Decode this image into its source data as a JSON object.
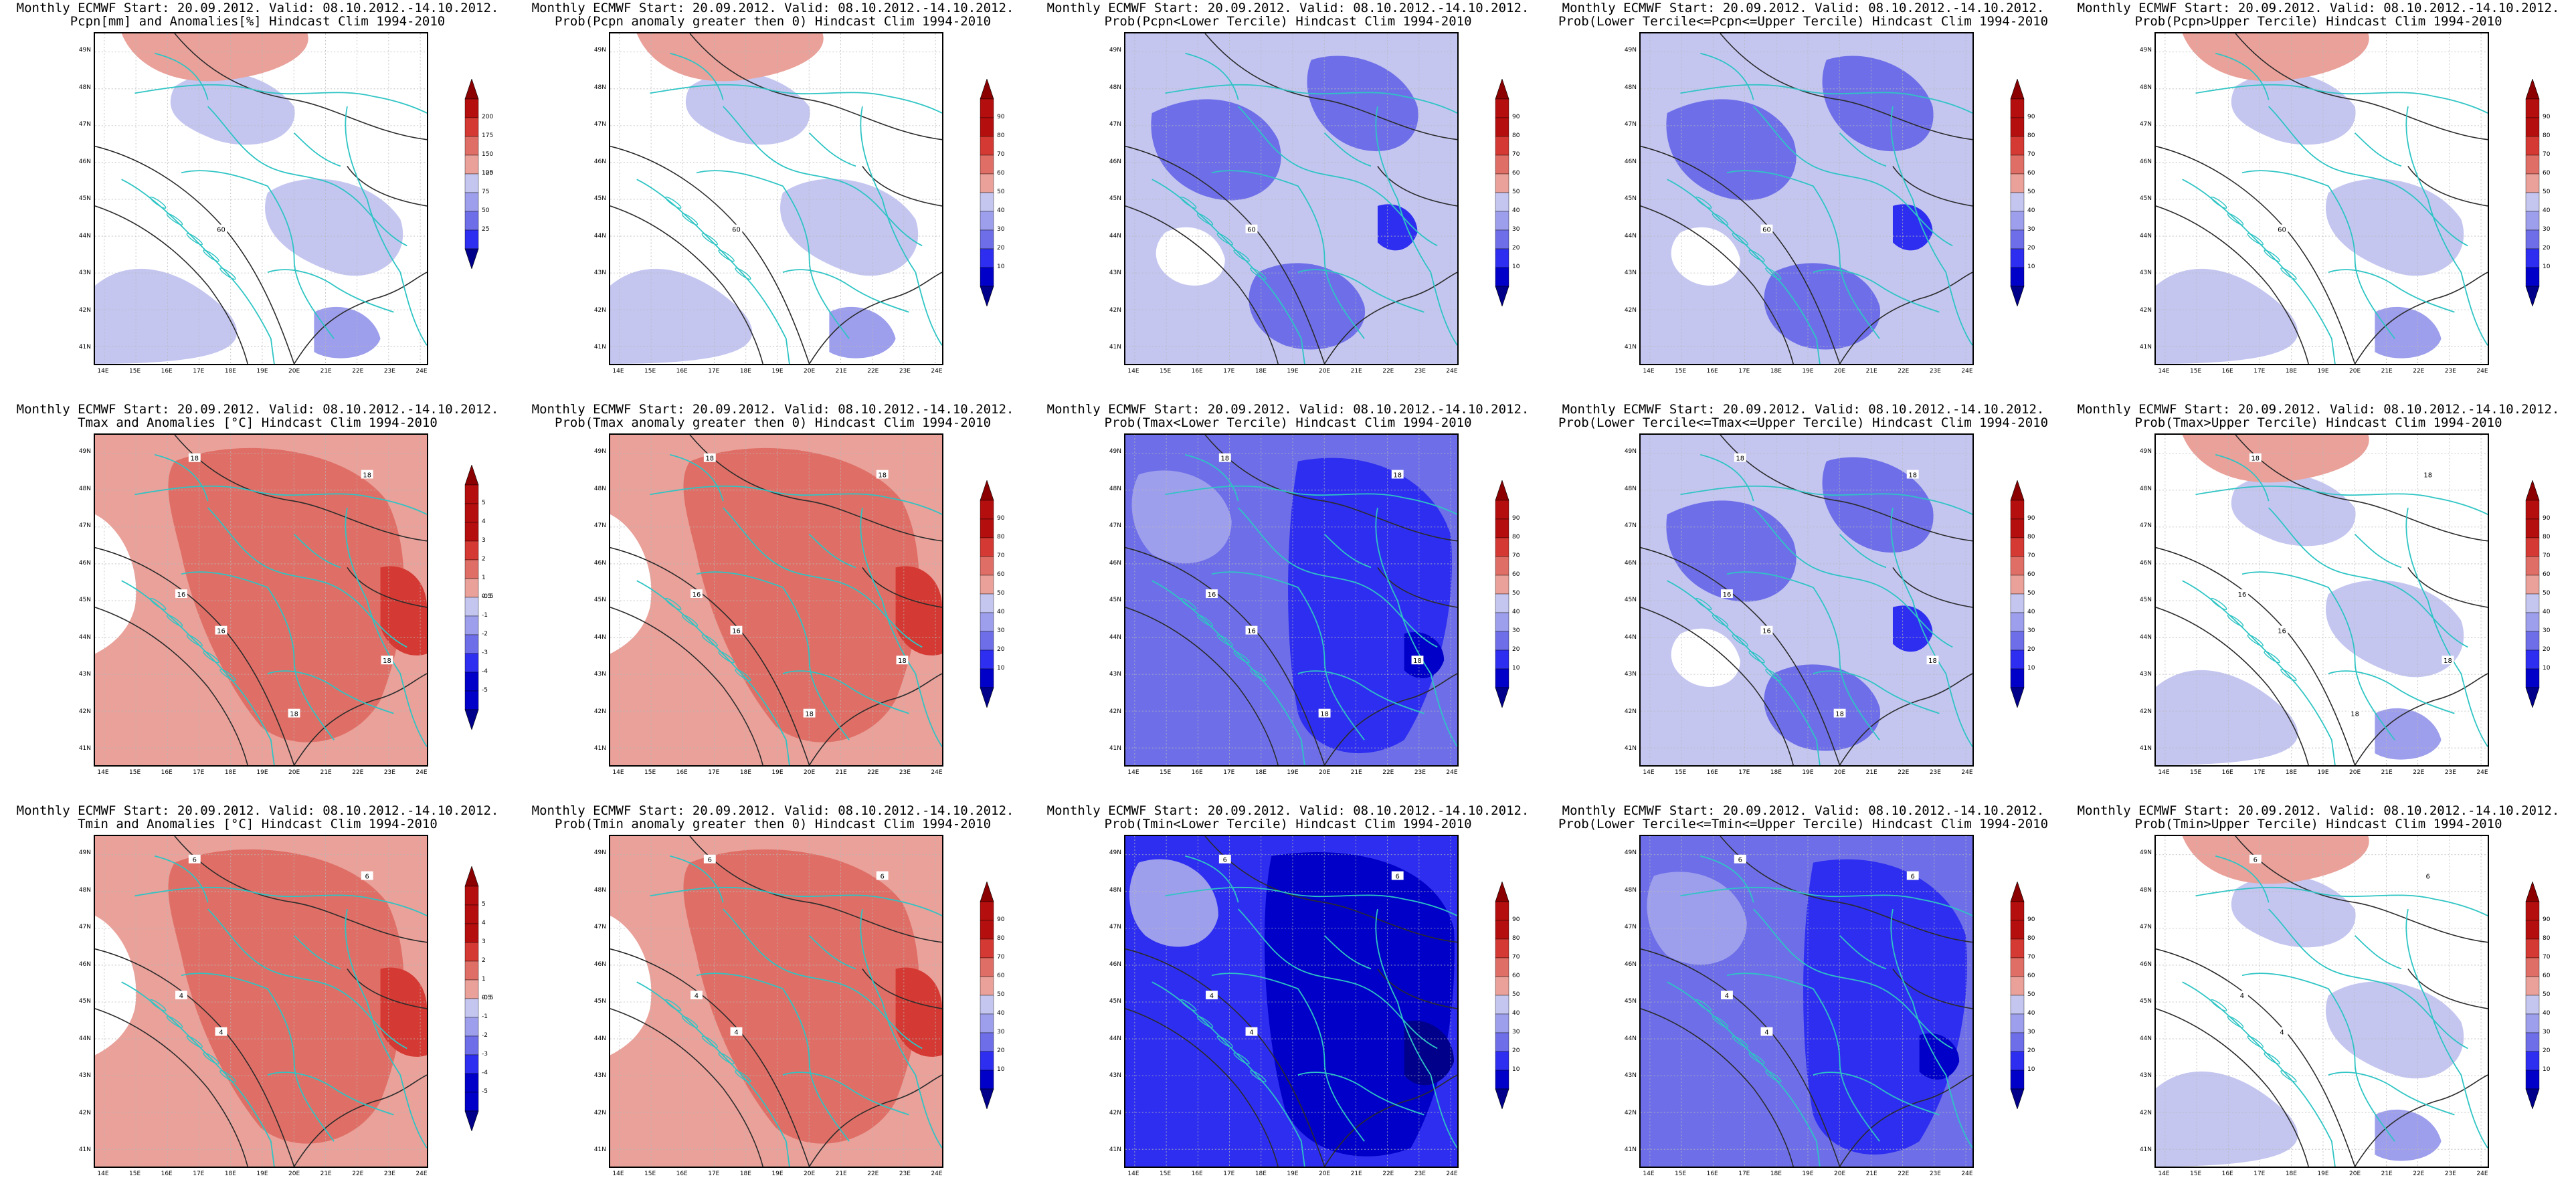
{
  "colors": {
    "red": [
      "#e9a19a",
      "#df6f66",
      "#d43a33",
      "#b50e0e",
      "#8b0000"
    ],
    "blue": [
      "#c4c6f0",
      "#9e9fec",
      "#6e6fe8",
      "#2e2ef0",
      "#0000c8",
      "#00008b"
    ],
    "border": "#2ec4c4",
    "contour": "#2b2b2b",
    "grid": "#b8b8b8"
  },
  "axes": {
    "lon_labels": [
      "14E",
      "15E",
      "16E",
      "17E",
      "18E",
      "19E",
      "20E",
      "21E",
      "22E",
      "23E",
      "24E"
    ],
    "lat_labels": [
      "49N",
      "48N",
      "47N",
      "46N",
      "45N",
      "44N",
      "43N",
      "42N",
      "41N"
    ]
  },
  "colorbars": {
    "pcpn_anom": {
      "labels": [
        "200",
        "175",
        "150",
        "125",
        "100",
        "75",
        "50",
        "25"
      ],
      "reds": 4,
      "blues": 4
    },
    "temp_anom": {
      "labels": [
        "5",
        "4",
        "3",
        "2",
        "1",
        "0.5",
        "-0.5",
        "-1",
        "-2",
        "-3",
        "-4",
        "-5"
      ],
      "reds": 6,
      "blues": 6
    },
    "prob": {
      "labels": [
        "90",
        "80",
        "70",
        "60",
        "50",
        "40",
        "30",
        "20",
        "10"
      ],
      "reds": 5,
      "blues": 5
    }
  },
  "panels": [
    {
      "id": "p11",
      "title1": "Monthly ECMWF Start: 20.09.2012. Valid: 08.10.2012.-14.10.2012.",
      "title2": "Pcpn[mm] and Anomalies[%] Hindcast Clim 1994-2010",
      "cbar": "pcpn_anom",
      "base": "white",
      "contour_labels": [
        "60"
      ]
    },
    {
      "id": "p12",
      "title1": "Monthly ECMWF Start: 20.09.2012. Valid: 08.10.2012.-14.10.2012.",
      "title2": "Prob(Pcpn anomaly greater then 0) Hindcast Clim 1994-2010",
      "cbar": "prob",
      "base": "white",
      "contour_labels": [
        "60"
      ]
    },
    {
      "id": "p13",
      "title1": "Monthly ECMWF Start: 20.09.2012. Valid: 08.10.2012.-14.10.2012.",
      "title2": "Prob(Pcpn<Lower Tercile) Hindcast Clim 1994-2010",
      "cbar": "prob",
      "base": "blue1",
      "contour_labels": [
        "60"
      ]
    },
    {
      "id": "p14",
      "title1": "Monthly ECMWF Start: 20.09.2012. Valid: 08.10.2012.-14.10.2012.",
      "title2": "Prob(Lower Tercile<=Pcpn<=Upper Tercile) Hindcast Clim 1994-2010",
      "cbar": "prob",
      "base": "blue1",
      "contour_labels": [
        "60"
      ]
    },
    {
      "id": "p15",
      "title1": "Monthly ECMWF Start: 20.09.2012. Valid: 08.10.2012.-14.10.2012.",
      "title2": "Prob(Pcpn>Upper Tercile) Hindcast Clim 1994-2010",
      "cbar": "prob",
      "base": "white",
      "contour_labels": [
        "60"
      ]
    },
    {
      "id": "p21",
      "title1": "Monthly ECMWF Start: 20.09.2012. Valid: 08.10.2012.-14.10.2012.",
      "title2": "Tmax and Anomalies [°C] Hindcast Clim 1994-2010",
      "cbar": "temp_anom",
      "base": "red1",
      "contour_labels": [
        "16",
        "18",
        "18",
        "16",
        "18",
        "18"
      ]
    },
    {
      "id": "p22",
      "title1": "Monthly ECMWF Start: 20.09.2012. Valid: 08.10.2012.-14.10.2012.",
      "title2": "Prob(Tmax anomaly greater then 0) Hindcast Clim 1994-2010",
      "cbar": "prob",
      "base": "red1",
      "contour_labels": [
        "16",
        "18",
        "18",
        "16",
        "18",
        "18"
      ]
    },
    {
      "id": "p23",
      "title1": "Monthly ECMWF Start: 20.09.2012. Valid: 08.10.2012.-14.10.2012.",
      "title2": "Prob(Tmax<Lower Tercile) Hindcast Clim 1994-2010",
      "cbar": "prob",
      "base": "blue2",
      "contour_labels": [
        "16",
        "18",
        "18",
        "16",
        "18",
        "18"
      ]
    },
    {
      "id": "p24",
      "title1": "Monthly ECMWF Start: 20.09.2012. Valid: 08.10.2012.-14.10.2012.",
      "title2": "Prob(Lower Tercile<=Tmax<=Upper Tercile) Hindcast Clim 1994-2010",
      "cbar": "prob",
      "base": "blue1",
      "contour_labels": [
        "16",
        "18",
        "18",
        "16",
        "18",
        "18"
      ]
    },
    {
      "id": "p25",
      "title1": "Monthly ECMWF Start: 20.09.2012. Valid: 08.10.2012.-14.10.2012.",
      "title2": "Prob(Tmax>Upper Tercile) Hindcast Clim 1994-2010",
      "cbar": "prob",
      "base": "white",
      "contour_labels": [
        "16",
        "18",
        "18",
        "16",
        "18",
        "18"
      ]
    },
    {
      "id": "p31",
      "title1": "Monthly ECMWF Start: 20.09.2012. Valid: 08.10.2012.-14.10.2012.",
      "title2": "Tmin and Anomalies [°C] Hindcast Clim 1994-2010",
      "cbar": "temp_anom",
      "base": "red1",
      "contour_labels": [
        "4",
        "6",
        "6",
        "4"
      ]
    },
    {
      "id": "p32",
      "title1": "Monthly ECMWF Start: 20.09.2012. Valid: 08.10.2012.-14.10.2012.",
      "title2": "Prob(Tmin anomaly greater then 0) Hindcast Clim 1994-2010",
      "cbar": "prob",
      "base": "red1",
      "contour_labels": [
        "4",
        "6",
        "6",
        "4"
      ]
    },
    {
      "id": "p33",
      "title1": "Monthly ECMWF Start: 20.09.2012. Valid: 08.10.2012.-14.10.2012.",
      "title2": "Prob(Tmin<Lower Tercile) Hindcast Clim 1994-2010",
      "cbar": "prob",
      "base": "blue3",
      "contour_labels": [
        "4",
        "6",
        "6",
        "4"
      ]
    },
    {
      "id": "p34",
      "title1": "Monthly ECMWF Start: 20.09.2012. Valid: 08.10.2012.-14.10.2012.",
      "title2": "Prob(Lower Tercile<=Tmin<=Upper Tercile) Hindcast Clim 1994-2010",
      "cbar": "prob",
      "base": "blue2",
      "contour_labels": [
        "4",
        "6",
        "6",
        "4"
      ]
    },
    {
      "id": "p35",
      "title1": "Monthly ECMWF Start: 20.09.2012. Valid: 08.10.2012.-14.10.2012.",
      "title2": "Prob(Tmin>Upper Tercile) Hindcast Clim 1994-2010",
      "cbar": "prob",
      "base": "white",
      "contour_labels": [
        "4",
        "6",
        "6",
        "4"
      ]
    }
  ]
}
